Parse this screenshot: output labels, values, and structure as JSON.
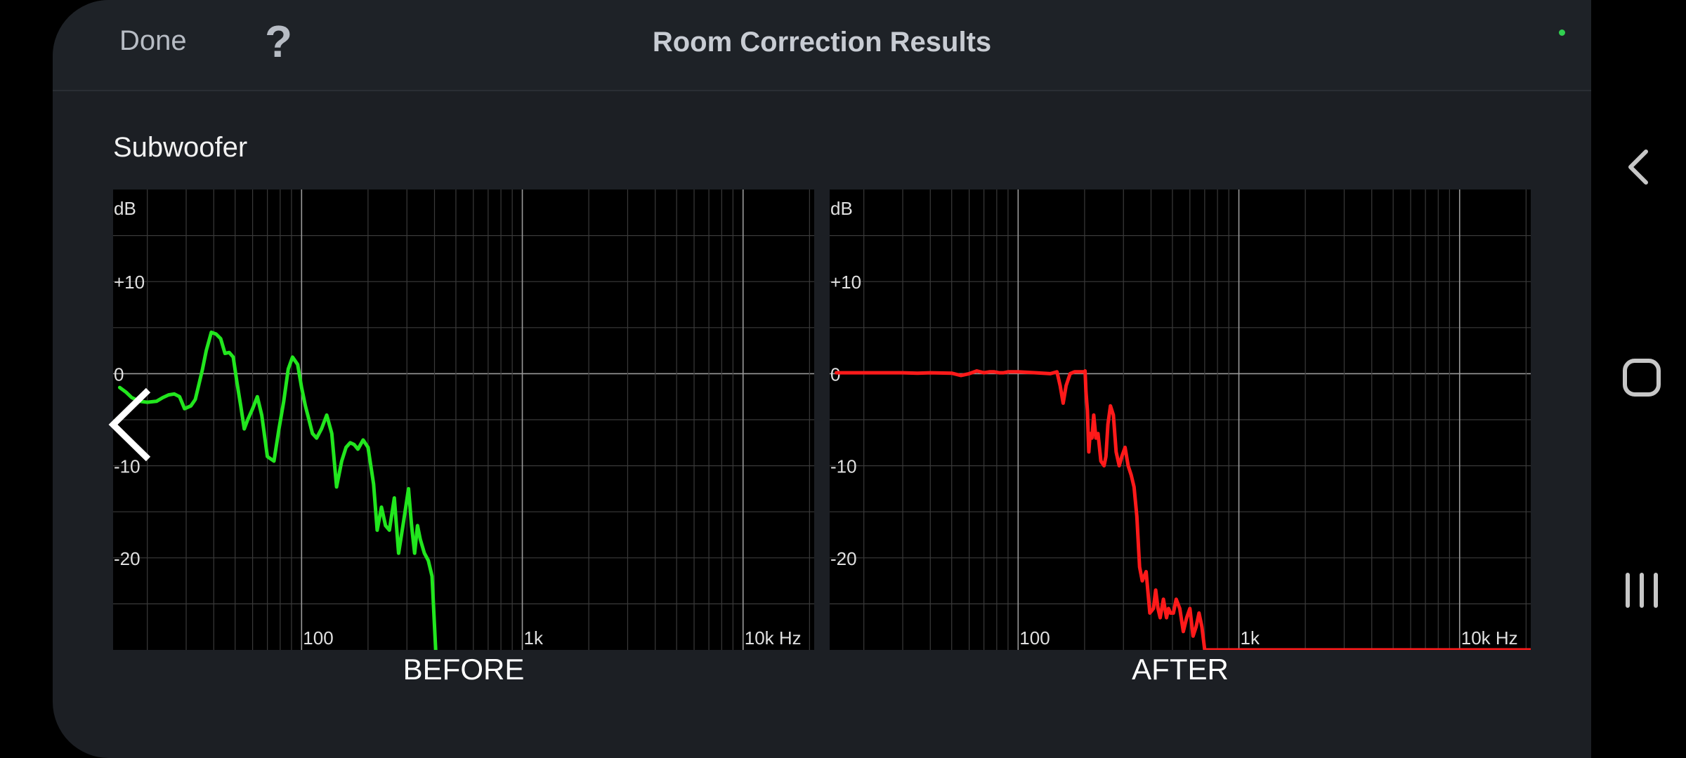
{
  "header": {
    "done_label": "Done",
    "help_label": "?",
    "title": "Room Correction Results"
  },
  "section": {
    "title": "Subwoofer"
  },
  "colors": {
    "before_trace": "#22e61e",
    "after_trace": "#ff1a1a",
    "grid": "#3a3a3a",
    "grid_major": "#9a9a9a",
    "status_dot": "#31d050"
  },
  "nav": {
    "previous_icon": "chevron-left-icon",
    "back_icon": "back-icon",
    "home_icon": "home-icon",
    "recents_icon": "recents-icon"
  },
  "chart_data": [
    {
      "type": "line",
      "caption": "BEFORE",
      "y_unit_label": "dB",
      "x_unit_suffix": "Hz",
      "x_scale": "log",
      "xlim": [
        14,
        21000
      ],
      "ylim": [
        -30,
        20
      ],
      "y_tick_labels": [
        "+10",
        "0",
        "-10",
        "-20"
      ],
      "y_ticks": [
        10,
        0,
        -10,
        -20
      ],
      "x_tick_labels": [
        "100",
        "1k",
        "10k Hz"
      ],
      "x_ticks": [
        100,
        1000,
        10000
      ],
      "grid": true,
      "series": [
        {
          "x": [
            15,
            16,
            17,
            18.5,
            20,
            22,
            23.5,
            25,
            26.5,
            28,
            29.5,
            31.5,
            33,
            34,
            35.5,
            37,
            39,
            41,
            43,
            45,
            47,
            49,
            51,
            53,
            55,
            57,
            60,
            63,
            66,
            70,
            75,
            79,
            83,
            87,
            91,
            96,
            100,
            104,
            108,
            112,
            117,
            123,
            130,
            137,
            144,
            152,
            159,
            166,
            173,
            180,
            190,
            200,
            212,
            220,
            230,
            240,
            250,
            263,
            275,
            290,
            305,
            315,
            325,
            335,
            345,
            360,
            375,
            390,
            405
          ],
          "y": [
            -1.5,
            -2,
            -2.6,
            -3,
            -3.1,
            -3,
            -2.6,
            -2.3,
            -2.2,
            -2.5,
            -3.8,
            -3.5,
            -2.8,
            -1.5,
            0.4,
            2.5,
            4.5,
            4.3,
            3.8,
            2.2,
            2.3,
            1.8,
            -1,
            -3.5,
            -6,
            -5,
            -3.8,
            -2.5,
            -4.5,
            -9,
            -9.5,
            -6,
            -3,
            0.5,
            1.8,
            1,
            -1.5,
            -3.5,
            -5,
            -6.5,
            -7,
            -6,
            -4.5,
            -6.5,
            -12.3,
            -9.5,
            -8,
            -7.5,
            -7.7,
            -8.2,
            -7.2,
            -8,
            -12,
            -17,
            -14.5,
            -16.5,
            -17,
            -13.5,
            -19.5,
            -16,
            -12.5,
            -16.5,
            -19.5,
            -16.5,
            -18,
            -19.5,
            -20.3,
            -22,
            -30
          ]
        }
      ]
    },
    {
      "type": "line",
      "caption": "AFTER",
      "y_unit_label": "dB",
      "x_unit_suffix": "Hz",
      "x_scale": "log",
      "xlim": [
        14,
        21000
      ],
      "ylim": [
        -30,
        20
      ],
      "y_tick_labels": [
        "+10",
        "0",
        "-10",
        "-20"
      ],
      "y_ticks": [
        10,
        0,
        -10,
        -20
      ],
      "x_tick_labels": [
        "100",
        "1k",
        "10k Hz"
      ],
      "x_ticks": [
        100,
        1000,
        10000
      ],
      "grid": true,
      "series": [
        {
          "x": [
            15,
            20,
            25,
            30,
            35,
            40,
            50,
            55,
            60,
            65,
            70,
            74,
            78,
            82,
            86,
            90,
            100,
            120,
            140,
            150,
            155,
            160,
            165,
            172,
            180,
            190,
            200,
            201,
            203,
            206,
            209,
            212,
            216,
            220,
            225,
            230,
            237,
            245,
            250,
            255,
            262,
            270,
            278,
            287,
            295,
            305,
            315,
            325,
            335,
            345,
            355,
            365,
            380,
            395,
            410,
            420,
            430,
            440,
            455,
            470,
            480,
            490,
            505,
            520,
            540,
            560,
            580,
            600,
            620,
            640,
            660,
            680,
            700,
            750,
            800,
            820,
            21000
          ],
          "y": [
            0.1,
            0.1,
            0.1,
            0.1,
            0.05,
            0.1,
            0.05,
            -0.2,
            0,
            0.3,
            0.1,
            0.2,
            0.2,
            0.1,
            0.1,
            0.2,
            0.2,
            0.1,
            0,
            0.2,
            -1.3,
            -3.2,
            -1.3,
            0,
            0.2,
            0.2,
            0.2,
            0.3,
            -2,
            -4,
            -8.5,
            -6.5,
            -7,
            -4.5,
            -7,
            -6.5,
            -9.5,
            -10,
            -9,
            -5.5,
            -3.5,
            -4.5,
            -8.5,
            -10,
            -9,
            -8,
            -10,
            -11,
            -12.3,
            -15.5,
            -21,
            -22.5,
            -21.5,
            -26,
            -25.5,
            -23.5,
            -25.5,
            -26.5,
            -24.5,
            -26.5,
            -25.5,
            -26,
            -26,
            -24.5,
            -25.5,
            -28,
            -26.5,
            -25.5,
            -28.5,
            -27.5,
            -26,
            -27.5,
            -30,
            -30,
            -30,
            -30,
            -30
          ]
        }
      ]
    }
  ]
}
